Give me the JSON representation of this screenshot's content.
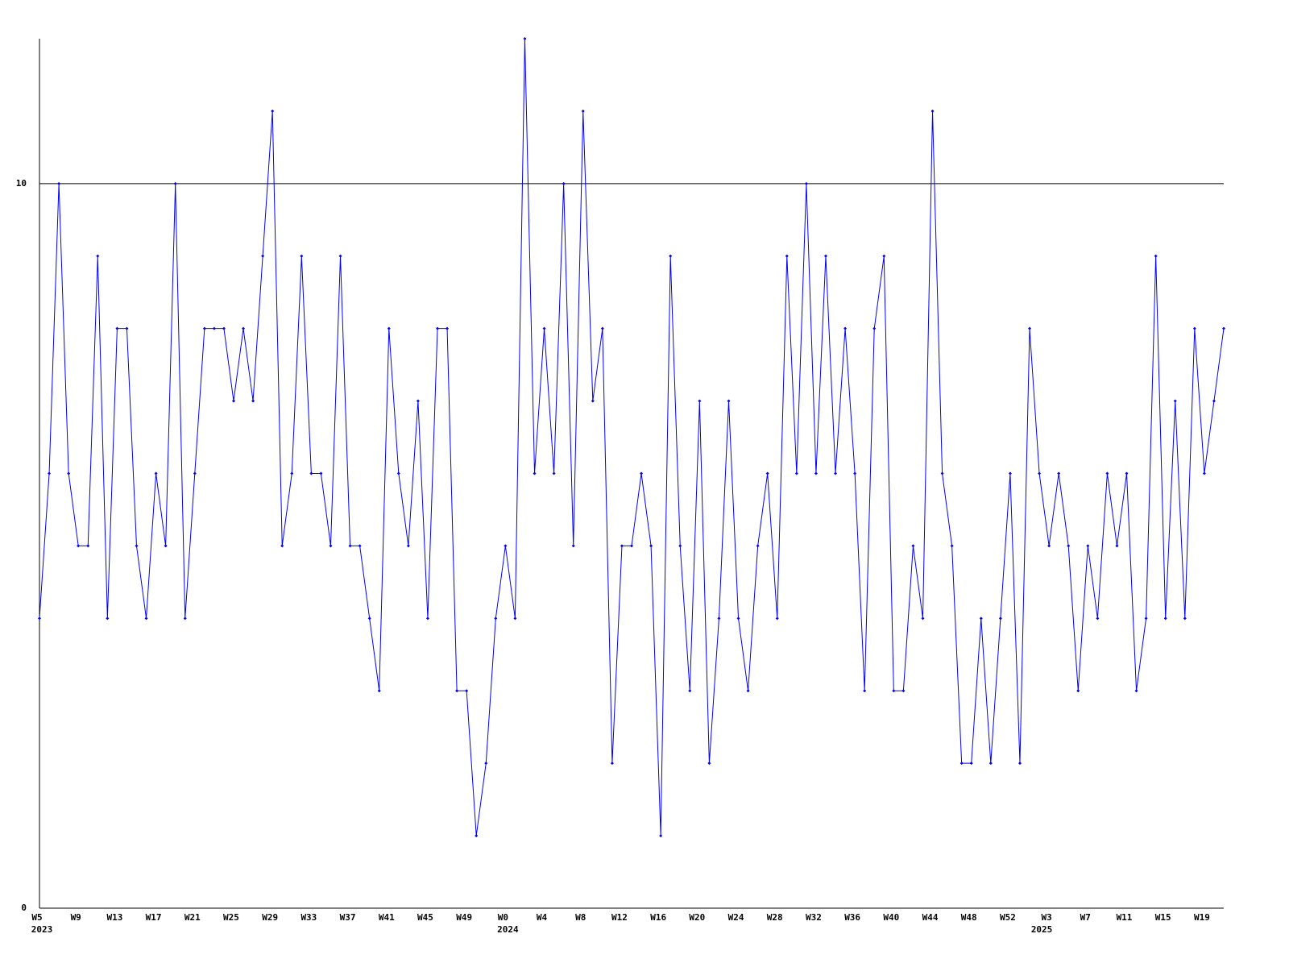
{
  "chart_data": {
    "type": "line",
    "categories": [
      "W5",
      null,
      null,
      null,
      "W9",
      null,
      null,
      null,
      "W13",
      null,
      null,
      null,
      "W17",
      null,
      null,
      null,
      "W21",
      null,
      null,
      null,
      "W25",
      null,
      null,
      null,
      "W29",
      null,
      null,
      null,
      "W33",
      null,
      null,
      null,
      "W37",
      null,
      null,
      null,
      "W41",
      null,
      null,
      null,
      "W45",
      null,
      null,
      null,
      "W49",
      null,
      null,
      null,
      "W0",
      null,
      null,
      null,
      "W4",
      null,
      null,
      null,
      "W8",
      null,
      null,
      null,
      "W12",
      null,
      null,
      null,
      "W16",
      null,
      null,
      null,
      "W20",
      null,
      null,
      null,
      "W24",
      null,
      null,
      null,
      "W28",
      null,
      null,
      null,
      "W32",
      null,
      null,
      null,
      "W36",
      null,
      null,
      null,
      "W40",
      null,
      null,
      null,
      "W44",
      null,
      null,
      null,
      "W48",
      null,
      null,
      null,
      "W52",
      null,
      null,
      null,
      "W3",
      null,
      null,
      null,
      "W7",
      null,
      null,
      null,
      "W11",
      null,
      null,
      null,
      "W15",
      null,
      null,
      null,
      "W19",
      null,
      null
    ],
    "year_categories": [
      "2023",
      null,
      null,
      null,
      null,
      null,
      null,
      null,
      null,
      null,
      null,
      null,
      null,
      null,
      null,
      null,
      null,
      null,
      null,
      null,
      null,
      null,
      null,
      null,
      null,
      null,
      null,
      null,
      null,
      null,
      null,
      null,
      null,
      null,
      null,
      null,
      null,
      null,
      null,
      null,
      null,
      null,
      null,
      null,
      null,
      null,
      null,
      null,
      "2024",
      null,
      null,
      null,
      null,
      null,
      null,
      null,
      null,
      null,
      null,
      null,
      null,
      null,
      null,
      null,
      null,
      null,
      null,
      null,
      null,
      null,
      null,
      null,
      null,
      null,
      null,
      null,
      null,
      null,
      null,
      null,
      null,
      null,
      null,
      null,
      null,
      null,
      null,
      null,
      null,
      null,
      null,
      null,
      null,
      null,
      null,
      null,
      null,
      null,
      null,
      null,
      null,
      null,
      null,
      "2025",
      null,
      null,
      null,
      null,
      null,
      null,
      null,
      null,
      null,
      null,
      null,
      null,
      null,
      null,
      null,
      null,
      null,
      null,
      null,
      null,
      null
    ],
    "series": [
      {
        "color": "#0000ff",
        "values": [
          4,
          6,
          10,
          6,
          5,
          5,
          9,
          4,
          8,
          8,
          5,
          4,
          6,
          5,
          10,
          4,
          6,
          8,
          8,
          8,
          7,
          8,
          7,
          9,
          11,
          5,
          6,
          9,
          6,
          6,
          5,
          9,
          5,
          5,
          4,
          3,
          8,
          6,
          5,
          7,
          4,
          8,
          8,
          3,
          3,
          1,
          2,
          4,
          5,
          4,
          12,
          6,
          8,
          6,
          10,
          5,
          11,
          7,
          8,
          2,
          5,
          5,
          6,
          5,
          1,
          9,
          5,
          3,
          7,
          2,
          4,
          7,
          4,
          3,
          5,
          6,
          4,
          9,
          6,
          10,
          6,
          9,
          6,
          8,
          6,
          3,
          8,
          9,
          3,
          3,
          5,
          4,
          11,
          6,
          5,
          2,
          2,
          4,
          2,
          4,
          6,
          2,
          8,
          6,
          5,
          6,
          5,
          3,
          5,
          4,
          6,
          5,
          6,
          3,
          4,
          9,
          4,
          7,
          4,
          8,
          6,
          7,
          8
        ]
      }
    ],
    "ylim": [
      0,
      12
    ],
    "yticks": [
      0,
      10
    ],
    "grid": true
  }
}
